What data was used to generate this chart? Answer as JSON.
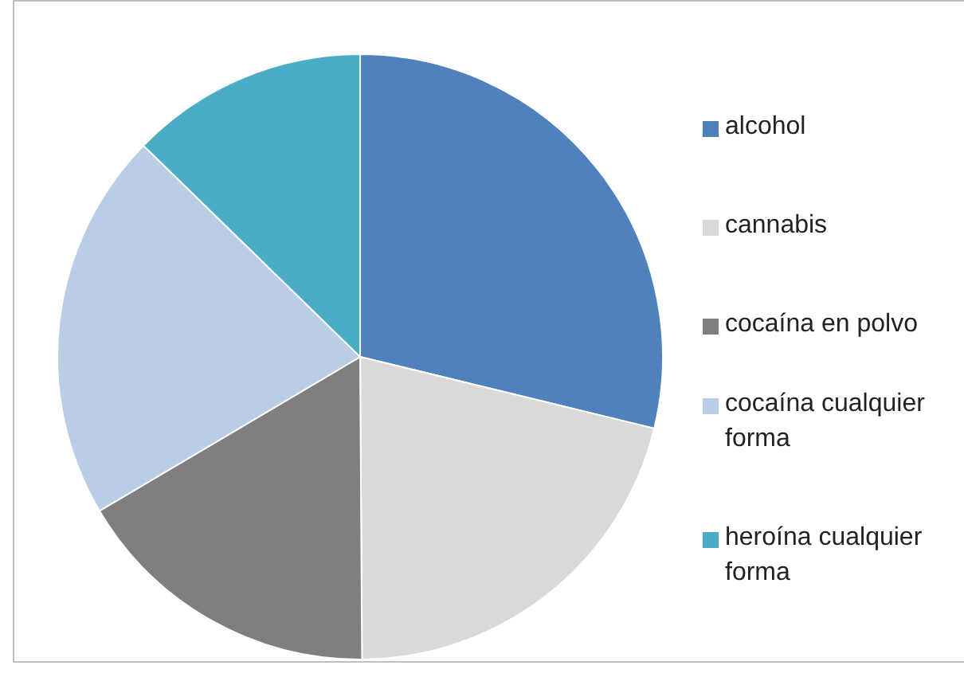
{
  "chart_data": {
    "type": "pie",
    "categories": [
      "alcohol",
      "cannabis",
      "cocaína en polvo",
      "cocaína cualquier forma",
      "heroína cualquier forma"
    ],
    "values": [
      28.8,
      21.1,
      16.6,
      20.8,
      12.7
    ],
    "colors": [
      "#4f81bd",
      "#d9d9d9",
      "#7f7f7f",
      "#b9cde5",
      "#4bacc6"
    ],
    "legend": "right"
  }
}
